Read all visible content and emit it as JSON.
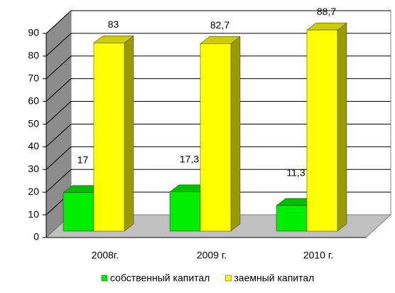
{
  "chart_data": {
    "type": "bar3d",
    "categories": [
      "2008г.",
      "2009 г.",
      "2010 г."
    ],
    "series": [
      {
        "name": "собственный капитал",
        "color": "#00ee00",
        "values": [
          17,
          17.3,
          11.3
        ],
        "value_labels": [
          "17",
          "17,3",
          "11,3"
        ]
      },
      {
        "name": "заемный капитал",
        "color": "#ffff00",
        "values": [
          83,
          82.7,
          88.7
        ],
        "value_labels": [
          "83",
          "82,7",
          "88,7"
        ]
      }
    ],
    "ylim": [
      0,
      90
    ],
    "yticks": [
      0,
      10,
      20,
      30,
      40,
      50,
      60,
      70,
      80,
      90
    ],
    "grid": true,
    "legend": "bottom"
  }
}
